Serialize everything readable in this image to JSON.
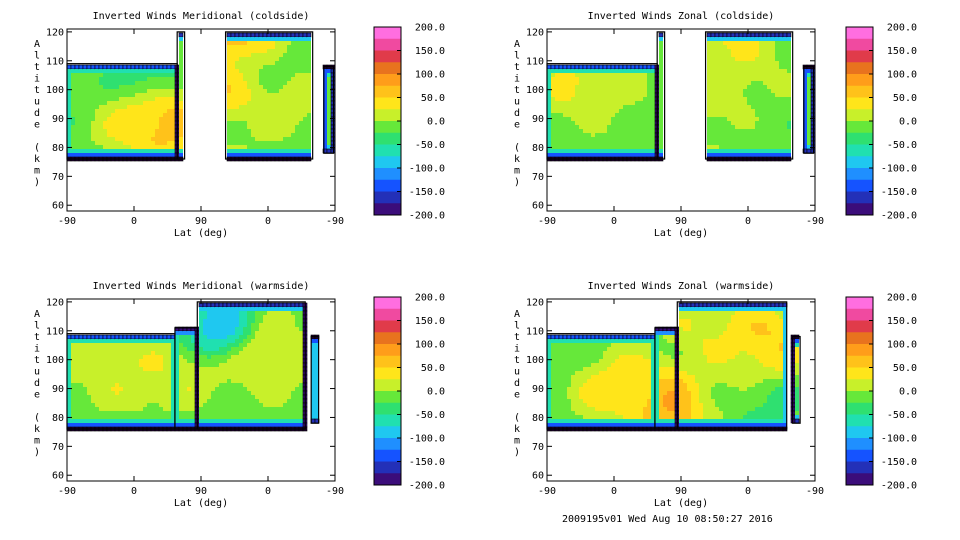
{
  "footer": "2009195v01 Wed Aug 10 08:50:27 2016",
  "chart_data": [
    {
      "type": "heatmap",
      "title": "Inverted Winds Meridional (coldside)",
      "xlabel": "Lat (deg)",
      "ylabel": "Altitude (km)",
      "x_ticks": [
        "-90",
        "0",
        "90",
        "0",
        "-90"
      ],
      "y_ticks": [
        "60",
        "70",
        "80",
        "90",
        "100",
        "110",
        "120"
      ],
      "ylim": [
        58,
        121
      ],
      "colorbar_ticks": [
        "200.0",
        "150.0",
        "100.0",
        "50.0",
        "0.0",
        "-50.0",
        "-100.0",
        "-150.0",
        "-200.0"
      ],
      "colorbar_range": [
        -200,
        200
      ],
      "blobs": [
        {
          "x": -10,
          "y": 91,
          "v": 55
        },
        {
          "x": 35,
          "y": 89,
          "v": 110
        },
        {
          "x": -65,
          "y": 100,
          "v": -15
        },
        {
          "x": 15,
          "y": 104,
          "v": -40
        },
        {
          "x": 150,
          "y": 117,
          "v": 120
        },
        {
          "x": 130,
          "y": 100,
          "v": 80
        },
        {
          "x": 155,
          "y": 86,
          "v": 15
        },
        {
          "x": 200,
          "y": 98,
          "v": 45
        },
        {
          "x": 175,
          "y": 108,
          "v": -30
        }
      ],
      "regions": [
        {
          "x": [
            -90,
            58
          ],
          "y": [
            76,
            109
          ]
        },
        {
          "x": [
            58,
            68
          ],
          "y": [
            76,
            120
          ]
        },
        {
          "x": [
            123,
            240
          ],
          "y": [
            76,
            120
          ]
        },
        {
          "x": [
            255,
            268
          ],
          "y": [
            78,
            108
          ]
        }
      ]
    },
    {
      "type": "heatmap",
      "title": "Inverted Winds Zonal (coldside)",
      "xlabel": "Lat (deg)",
      "ylabel": "Altitude (km)",
      "x_ticks": [
        "-90",
        "0",
        "90",
        "0",
        "-90"
      ],
      "y_ticks": [
        "60",
        "70",
        "80",
        "90",
        "100",
        "110",
        "120"
      ],
      "ylim": [
        58,
        121
      ],
      "colorbar_ticks": [
        "200.0",
        "150.0",
        "100.0",
        "50.0",
        "0.0",
        "-50.0",
        "-100.0",
        "-150.0",
        "-200.0"
      ],
      "colorbar_range": [
        -200,
        200
      ],
      "blobs": [
        {
          "x": -50,
          "y": 101,
          "v": 55
        },
        {
          "x": 10,
          "y": 99,
          "v": 45
        },
        {
          "x": -20,
          "y": 86,
          "v": 5
        },
        {
          "x": 40,
          "y": 95,
          "v": -15
        },
        {
          "x": 150,
          "y": 116,
          "v": 60
        },
        {
          "x": 180,
          "y": 105,
          "v": 30
        },
        {
          "x": 140,
          "y": 92,
          "v": 30
        },
        {
          "x": 200,
          "y": 85,
          "v": -5
        }
      ],
      "regions": [
        {
          "x": [
            -90,
            58
          ],
          "y": [
            76,
            109
          ]
        },
        {
          "x": [
            58,
            68
          ],
          "y": [
            76,
            120
          ]
        },
        {
          "x": [
            123,
            240
          ],
          "y": [
            76,
            120
          ]
        },
        {
          "x": [
            255,
            268
          ],
          "y": [
            78,
            108
          ]
        }
      ]
    },
    {
      "type": "heatmap",
      "title": "Inverted Winds Meridional (warmside)",
      "xlabel": "Lat (deg)",
      "ylabel": "Altitude (km)",
      "x_ticks": [
        "-90",
        "0",
        "90",
        "0",
        "-90"
      ],
      "y_ticks": [
        "60",
        "70",
        "80",
        "90",
        "100",
        "110",
        "120"
      ],
      "ylim": [
        58,
        121
      ],
      "colorbar_ticks": [
        "200.0",
        "150.0",
        "100.0",
        "50.0",
        "0.0",
        "-50.0",
        "-100.0",
        "-150.0",
        "-200.0"
      ],
      "colorbar_range": [
        -200,
        200
      ],
      "blobs": [
        {
          "x": -30,
          "y": 97,
          "v": 45
        },
        {
          "x": 20,
          "y": 95,
          "v": 40
        },
        {
          "x": 80,
          "y": 94,
          "v": 45
        },
        {
          "x": -70,
          "y": 95,
          "v": 20
        },
        {
          "x": 115,
          "y": 110,
          "v": -110
        },
        {
          "x": 180,
          "y": 102,
          "v": 70
        },
        {
          "x": 150,
          "y": 93,
          "v": 40
        },
        {
          "x": 130,
          "y": 85,
          "v": -20
        },
        {
          "x": 210,
          "y": 110,
          "v": 15
        }
      ],
      "regions": [
        {
          "x": [
            -90,
            55
          ],
          "y": [
            76,
            109
          ]
        },
        {
          "x": [
            55,
            85
          ],
          "y": [
            76,
            111
          ]
        },
        {
          "x": [
            85,
            230
          ],
          "y": [
            76,
            120
          ]
        },
        {
          "x": [
            238,
            248
          ],
          "y": [
            78,
            108
          ]
        }
      ]
    },
    {
      "type": "heatmap",
      "title": "Inverted Winds Zonal (warmside)",
      "xlabel": "Lat (deg)",
      "ylabel": "Altitude (km)",
      "x_ticks": [
        "-90",
        "0",
        "90",
        "0",
        "-90"
      ],
      "y_ticks": [
        "60",
        "70",
        "80",
        "90",
        "100",
        "110",
        "120"
      ],
      "ylim": [
        58,
        121
      ],
      "colorbar_ticks": [
        "200.0",
        "150.0",
        "100.0",
        "50.0",
        "0.0",
        "-50.0",
        "-100.0",
        "-150.0",
        "-200.0"
      ],
      "colorbar_range": [
        -200,
        200
      ],
      "blobs": [
        {
          "x": -10,
          "y": 92,
          "v": 70
        },
        {
          "x": 40,
          "y": 90,
          "v": 50
        },
        {
          "x": 75,
          "y": 85,
          "v": 130
        },
        {
          "x": -60,
          "y": 102,
          "v": -10
        },
        {
          "x": 130,
          "y": 112,
          "v": 55
        },
        {
          "x": 170,
          "y": 102,
          "v": 40
        },
        {
          "x": 205,
          "y": 106,
          "v": 90
        },
        {
          "x": 140,
          "y": 88,
          "v": 20
        },
        {
          "x": 200,
          "y": 83,
          "v": -30
        }
      ],
      "regions": [
        {
          "x": [
            -90,
            55
          ],
          "y": [
            76,
            109
          ]
        },
        {
          "x": [
            55,
            85
          ],
          "y": [
            76,
            111
          ]
        },
        {
          "x": [
            85,
            232
          ],
          "y": [
            76,
            120
          ]
        },
        {
          "x": [
            240,
            250
          ],
          "y": [
            78,
            108
          ]
        }
      ]
    }
  ]
}
